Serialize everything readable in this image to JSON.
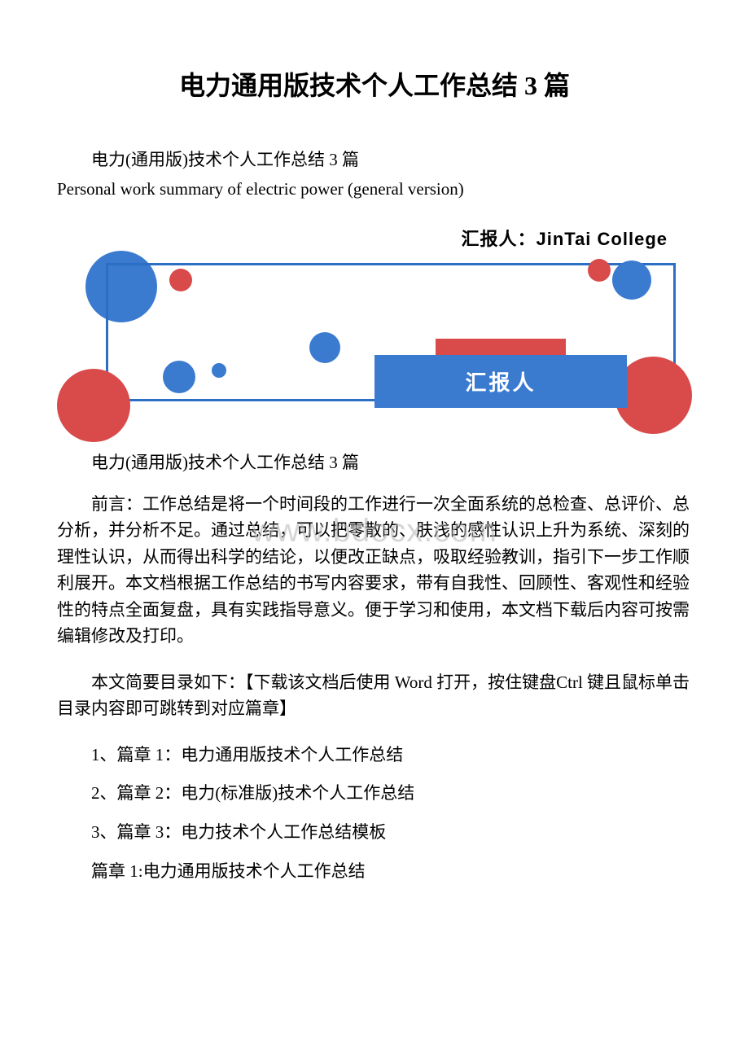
{
  "title": "电力通用版技术个人工作总结 3 篇",
  "subtitle_cn": "电力(通用版)技术个人工作总结 3 篇",
  "subtitle_en": "Personal work summary of electric power (general version)",
  "banner": {
    "reporter_line": "汇报人：JinTai  College",
    "box_label": "汇报人",
    "colors": {
      "blue": "#3a7bd0",
      "red": "#d94a4a",
      "border": "#2b6fc4",
      "white": "#ffffff"
    }
  },
  "watermark": "www.bdocx.com",
  "section_heading": "电力(通用版)技术个人工作总结 3 篇",
  "preface": "前言：工作总结是将一个时间段的工作进行一次全面系统的总检查、总评价、总分析，并分析不足。通过总结，可以把零散的、肤浅的感性认识上升为系统、深刻的理性认识，从而得出科学的结论，以便改正缺点，吸取经验教训，指引下一步工作顺利展开。本文档根据工作总结的书写内容要求，带有自我性、回顾性、客观性和经验性的特点全面复盘，具有实践指导意义。便于学习和使用，本文档下载后内容可按需编辑修改及打印。",
  "toc_intro": "本文简要目录如下：【下载该文档后使用 Word 打开，按住键盘Ctrl 键且鼠标单击目录内容即可跳转到对应篇章】",
  "toc": [
    "1、篇章 1：电力通用版技术个人工作总结",
    "2、篇章 2：电力(标准版)技术个人工作总结",
    "3、篇章 3：电力技术个人工作总结模板"
  ],
  "chapter1_heading": "篇章 1:电力通用版技术个人工作总结"
}
